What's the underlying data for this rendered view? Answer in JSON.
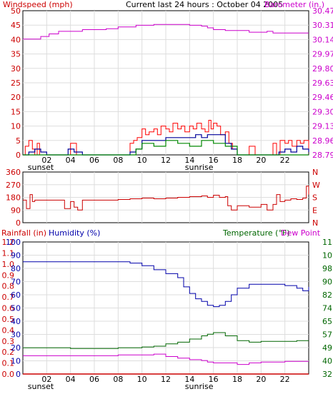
{
  "colors": {
    "red": "#cc0000",
    "magenta": "#cc00cc",
    "blue": "#0000aa",
    "green": "#006600",
    "windspeed_avg": "#000099",
    "gust": "#ff0000",
    "wind_lull": "#008800"
  },
  "chart_data": [
    {
      "type": "line",
      "title": "Current last 24 hours : October 04 2005",
      "left_axis_label": "Windspeed (mph)",
      "right_axis_label": "Barometer (in.)",
      "left_ticks": [
        "50",
        "45",
        "40",
        "35",
        "30",
        "25",
        "20",
        "15",
        "10",
        "5",
        "0"
      ],
      "right_ticks": [
        "30.47",
        "30.31",
        "30.14",
        "29.97",
        "29.80",
        "29.63",
        "29.46",
        "29.30",
        "29.13",
        "28.96",
        "28.79"
      ],
      "x_ticks": [
        "02",
        "04",
        "06",
        "08",
        "10",
        "12",
        "14",
        "16",
        "18",
        "20",
        "22"
      ],
      "x_annotations": [
        {
          "x": 1.5,
          "label": "sunset"
        },
        {
          "x": 14.8,
          "label": "sunrise"
        }
      ],
      "ylim": [
        0,
        50
      ],
      "y2lim": [
        28.79,
        30.47
      ],
      "xlim": [
        0,
        24
      ],
      "series": [
        {
          "key": "barometer",
          "axis": "right",
          "x": [
            0,
            0.5,
            1.5,
            2.2,
            3,
            4,
            5,
            6,
            7,
            8,
            9,
            9.5,
            10,
            11,
            13,
            14,
            15,
            15.5,
            16,
            17,
            18,
            19,
            20,
            20.5,
            21,
            22,
            23,
            24
          ],
          "values": [
            30.14,
            30.14,
            30.17,
            30.2,
            30.23,
            30.23,
            30.25,
            30.25,
            30.26,
            30.28,
            30.28,
            30.3,
            30.3,
            30.31,
            30.31,
            30.3,
            30.29,
            30.27,
            30.25,
            30.24,
            30.24,
            30.22,
            30.22,
            30.23,
            30.21,
            30.21,
            30.21,
            30.21
          ]
        },
        {
          "key": "gust",
          "axis": "left",
          "x": [
            0,
            0.2,
            0.5,
            0.8,
            1,
            1.2,
            1.4,
            1.8,
            2,
            2.5,
            3,
            3.5,
            4,
            4.5,
            5,
            5.5,
            6,
            6.5,
            7,
            7.5,
            8,
            8.5,
            9,
            9.3,
            9.6,
            10,
            10.3,
            10.6,
            11,
            11.3,
            11.6,
            12,
            12.3,
            12.6,
            13,
            13.3,
            13.6,
            14,
            14.3,
            14.6,
            15,
            15.3,
            15.6,
            15.8,
            16,
            16.3,
            16.6,
            17,
            17.3,
            17.6,
            18,
            18.5,
            19,
            19.5,
            20,
            20.5,
            21,
            21.3,
            21.6,
            22,
            22.3,
            22.6,
            23,
            23.3,
            23.6,
            24
          ],
          "values": [
            0,
            3,
            5,
            2,
            0,
            4,
            0,
            0,
            0,
            0,
            0,
            0,
            4,
            0,
            0,
            0,
            0,
            0,
            0,
            0,
            0,
            0,
            4,
            5,
            6,
            9,
            7,
            8,
            9,
            7,
            10,
            9,
            8,
            11,
            9,
            10,
            8,
            10,
            9,
            11,
            9,
            8,
            12,
            9,
            11,
            10,
            7,
            8,
            4,
            2,
            0,
            0,
            3,
            0,
            0,
            0,
            4,
            0,
            5,
            4,
            5,
            3,
            5,
            4,
            5,
            2
          ]
        },
        {
          "key": "average",
          "axis": "left",
          "x": [
            0,
            0.5,
            1,
            1.5,
            2,
            3,
            3.8,
            4.3,
            5,
            7,
            8.5,
            9,
            9.5,
            10,
            11,
            12,
            13,
            14,
            14.5,
            15,
            15.5,
            16,
            17,
            17.5,
            18,
            20,
            21,
            21.5,
            22,
            22.5,
            23,
            23.5,
            24
          ],
          "values": [
            0,
            1,
            2,
            1,
            0,
            0,
            2,
            1,
            0,
            0,
            0,
            1,
            2,
            5,
            5,
            6,
            6,
            6,
            7,
            6,
            7,
            7,
            4,
            2,
            0,
            0,
            0,
            1,
            2,
            1,
            3,
            2,
            1
          ]
        },
        {
          "key": "lull",
          "axis": "left",
          "x": [
            0,
            9,
            9.5,
            10,
            11,
            12,
            13,
            14,
            15,
            16,
            17,
            18,
            24
          ],
          "values": [
            0,
            0,
            2,
            4,
            3,
            5,
            4,
            3,
            5,
            4,
            3,
            0,
            0
          ]
        }
      ]
    },
    {
      "type": "line",
      "left_ticks": [
        "360",
        "270",
        "180",
        "90",
        "0"
      ],
      "right_ticks": [
        "N",
        "W",
        "S",
        "E",
        "N"
      ],
      "ylim": [
        0,
        360
      ],
      "xlim": [
        0,
        24
      ],
      "series": [
        {
          "key": "direction",
          "x": [
            0,
            0.3,
            0.6,
            0.8,
            1,
            2,
            3,
            3.5,
            4,
            4.3,
            4.6,
            5,
            6,
            7,
            8,
            9,
            10,
            11,
            12,
            13,
            14,
            15,
            15.5,
            16,
            16.5,
            17,
            17.2,
            17.5,
            18,
            19,
            20,
            20.5,
            21,
            21.3,
            21.6,
            22,
            22.5,
            23,
            23.5,
            23.8,
            24
          ],
          "values": [
            160,
            100,
            200,
            150,
            160,
            160,
            160,
            100,
            150,
            110,
            90,
            160,
            160,
            160,
            165,
            170,
            175,
            170,
            175,
            180,
            185,
            190,
            180,
            195,
            180,
            185,
            120,
            90,
            120,
            110,
            130,
            90,
            130,
            200,
            150,
            160,
            170,
            165,
            175,
            260,
            200
          ]
        }
      ]
    },
    {
      "type": "line",
      "left_axis_labels": [
        "Rainfall (in)",
        "Humidity (%)"
      ],
      "right_axis_labels": [
        "Temperature (°F)",
        "Dew Point"
      ],
      "rain_ticks": [
        "1.2",
        "1.1",
        "1.0",
        "0.9",
        "0.8",
        "0.7",
        "0.6",
        "0.5",
        "0.4",
        "0.3",
        "0.2",
        "0.1",
        "0.0"
      ],
      "humidity_ticks": [
        "100",
        "90",
        "80",
        "70",
        "60",
        "50",
        "40",
        "30",
        "20",
        "10",
        "0"
      ],
      "temp_ticks": [
        "115",
        "107",
        "98",
        "90",
        "82",
        "74",
        "65",
        "57",
        "49",
        "40",
        "32"
      ],
      "x_ticks": [
        "02",
        "04",
        "06",
        "08",
        "10",
        "12",
        "14",
        "16",
        "18",
        "20",
        "22"
      ],
      "x_annotations": [
        {
          "x": 1.5,
          "label": "sunset"
        },
        {
          "x": 14.8,
          "label": "sunrise"
        }
      ],
      "ylim": [
        0,
        100
      ],
      "y2lim": [
        32,
        115
      ],
      "xlim": [
        0,
        24
      ],
      "series": [
        {
          "key": "rain",
          "axis": "left",
          "x": [
            0,
            24
          ],
          "values": [
            0,
            0
          ]
        },
        {
          "key": "humidity",
          "axis": "left",
          "x": [
            0,
            2,
            4,
            6,
            7,
            8,
            9,
            10,
            11,
            12,
            13,
            13.5,
            14,
            14.5,
            15,
            15.5,
            16,
            16.5,
            17,
            17.5,
            18,
            19,
            20,
            21,
            22,
            23,
            23.5,
            24
          ],
          "values": [
            85,
            85,
            85,
            85,
            85,
            85,
            84,
            82,
            79,
            76,
            73,
            66,
            61,
            57,
            55,
            52,
            51,
            52,
            55,
            60,
            65,
            68,
            68,
            68,
            67,
            65,
            63,
            66
          ]
        },
        {
          "key": "temperature",
          "axis": "right",
          "x": [
            0,
            2,
            4,
            6,
            8,
            10,
            11,
            12,
            13,
            14,
            15,
            15.5,
            16,
            17,
            18,
            19,
            20,
            21,
            22,
            23,
            24
          ],
          "values": [
            48.5,
            48.5,
            48,
            48,
            48.5,
            49,
            49.5,
            51,
            52,
            54,
            56,
            57,
            58,
            56,
            53,
            52,
            52.5,
            52.5,
            52.5,
            53,
            53
          ]
        },
        {
          "key": "dewpoint",
          "axis": "right",
          "x": [
            0,
            2,
            4,
            6,
            8,
            10,
            11,
            12,
            13,
            14,
            15,
            15.5,
            16,
            17,
            18,
            19,
            20,
            21,
            22,
            23,
            24
          ],
          "values": [
            43.5,
            43.5,
            43.5,
            43.5,
            44,
            44,
            44.5,
            43,
            42,
            41,
            40.5,
            39.5,
            39,
            39,
            38,
            39,
            39.5,
            39.5,
            40,
            40,
            40
          ]
        }
      ]
    }
  ]
}
